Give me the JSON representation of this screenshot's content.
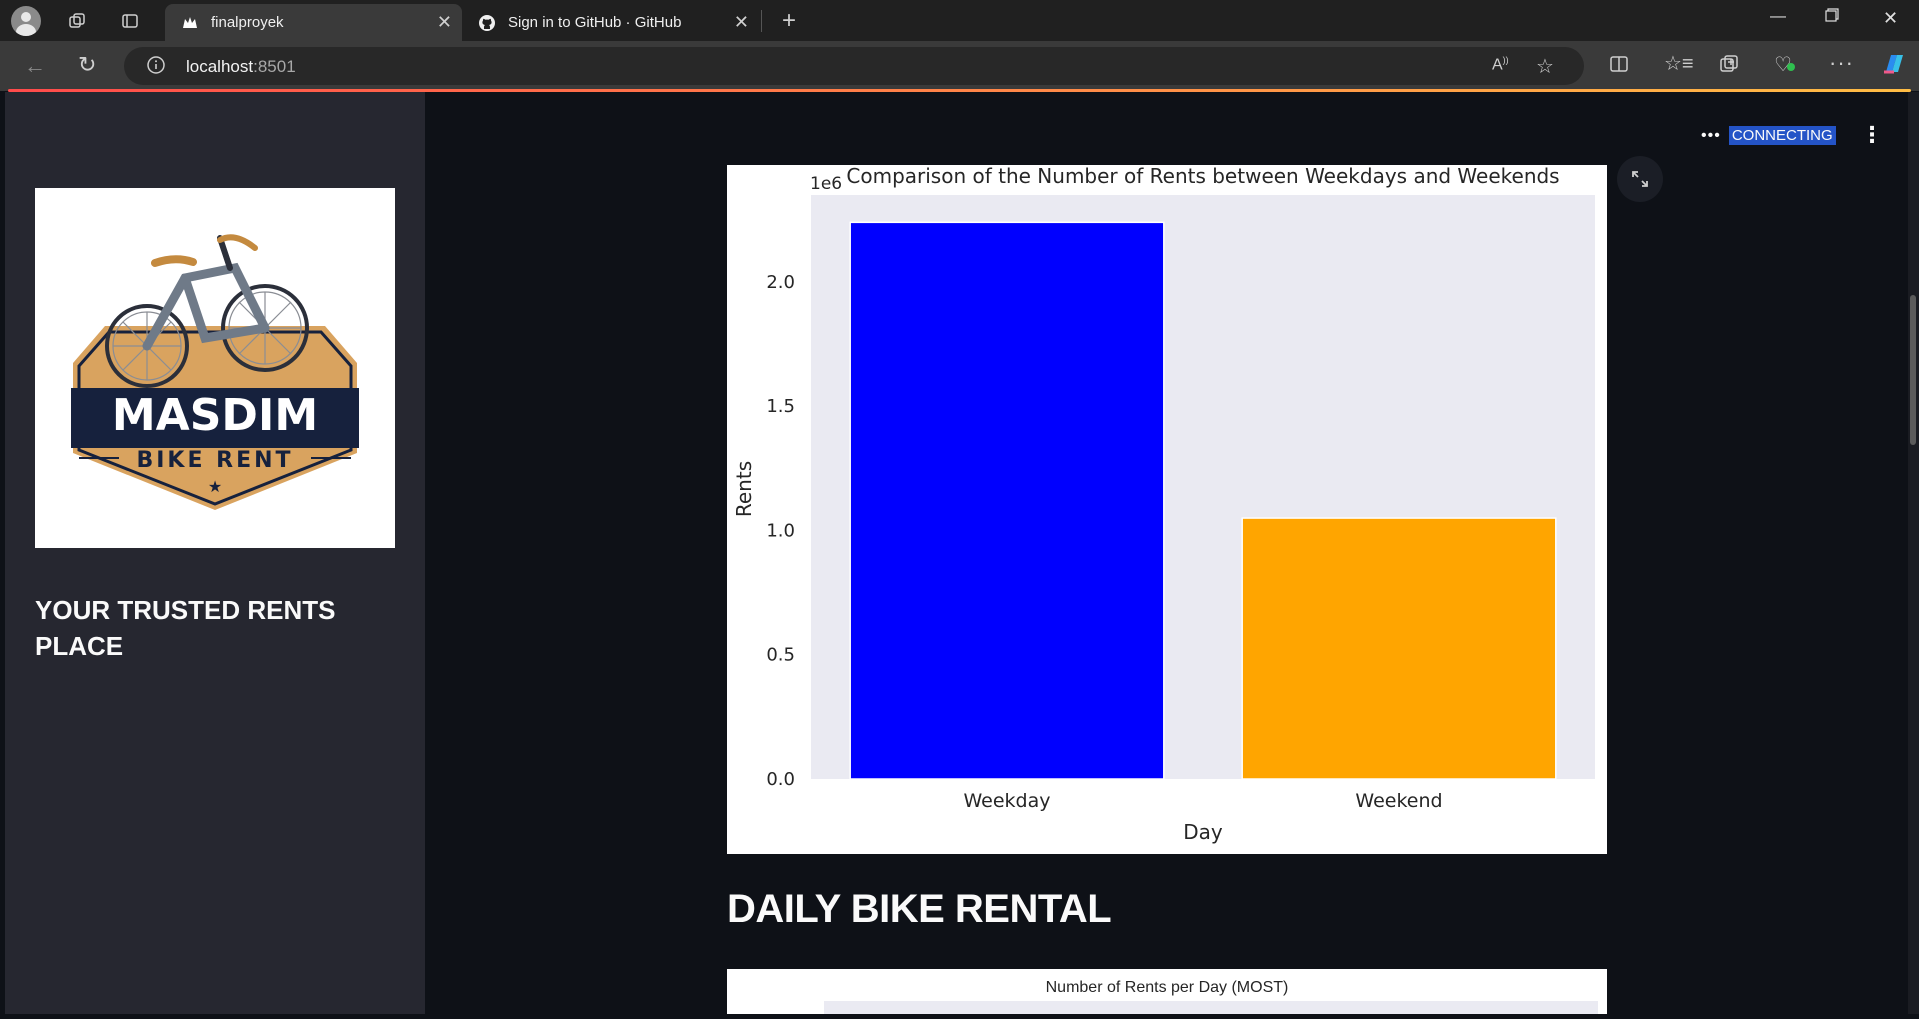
{
  "browser": {
    "tabs": [
      {
        "title": "finalproyek",
        "active": true
      },
      {
        "title": "Sign in to GitHub · GitHub",
        "active": false
      }
    ],
    "url_host": "localhost",
    "url_port": ":8501"
  },
  "sidebar": {
    "logo": {
      "brand": "MASDIM",
      "subtitle": "BIKE RENT"
    },
    "tagline": "YOUR TRUSTED RENTS PLACE"
  },
  "status": {
    "dots": "•••",
    "label": "CONNECTING"
  },
  "chart_data": [
    {
      "type": "bar",
      "title": "Comparison of the Number of Rents between Weekdays and Weekends",
      "xlabel": "Day",
      "ylabel": "Rents",
      "offset_label": "1e6",
      "categories": [
        "Weekday",
        "Weekend"
      ],
      "values": [
        2240000,
        1050000
      ],
      "colors": [
        "#0000ff",
        "#ffa500"
      ],
      "ylim": [
        0,
        2350000
      ],
      "yticks": [
        0,
        500000,
        1000000,
        1500000,
        2000000
      ],
      "ytick_labels": [
        "0.0",
        "0.5",
        "1.0",
        "1.5",
        "2.0"
      ],
      "grid": false,
      "background": "#eaeaf2"
    },
    {
      "type": "bar",
      "title": "Number of Rents per Day (MOST)"
    }
  ],
  "main": {
    "section_title": "DAILY BIKE RENTAL"
  }
}
